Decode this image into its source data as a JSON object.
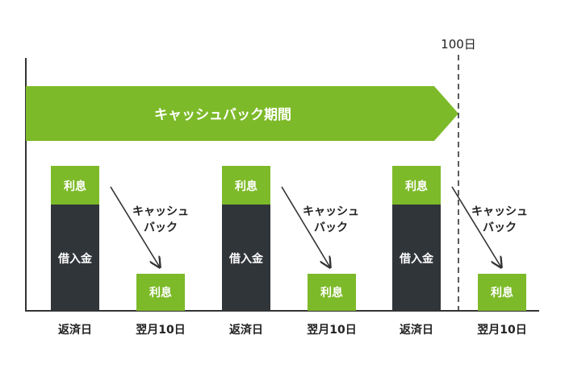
{
  "colors": {
    "green": "#7dba29",
    "dark": "#30353a",
    "axis": "#333333",
    "text": "#222222"
  },
  "banner": {
    "label": "キャッシュバック期間"
  },
  "deadline": {
    "label": "100日"
  },
  "boxes": {
    "interest_label": "利息",
    "principal_label": "借入金"
  },
  "arrow": {
    "label_line1": "キャッシュ",
    "label_line2": "バック"
  },
  "axis_labels": [
    "返済日",
    "翌月10日",
    "返済日",
    "翌月10日",
    "返済日",
    "翌月10日"
  ]
}
